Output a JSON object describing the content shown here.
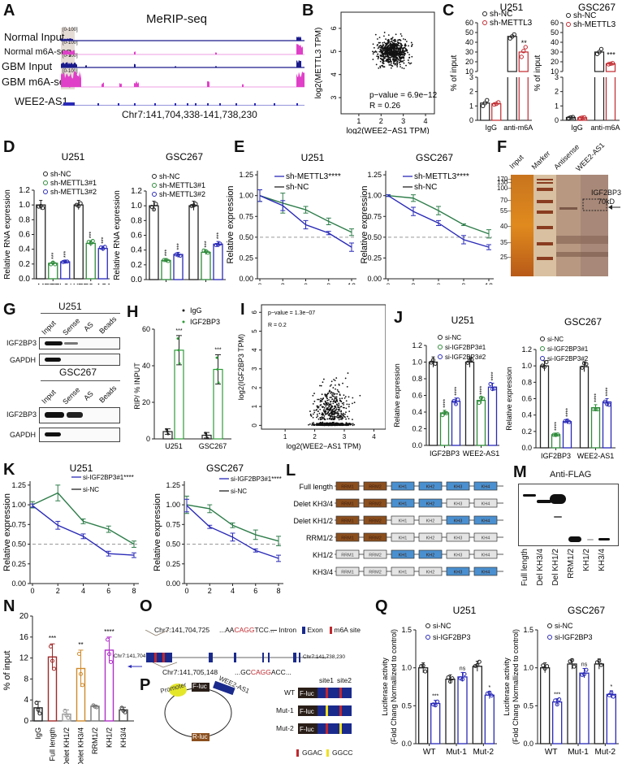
{
  "figure": {
    "panel_labels": [
      "A",
      "B",
      "C",
      "D",
      "E",
      "F",
      "G",
      "H",
      "I",
      "J",
      "K",
      "L",
      "M",
      "N",
      "O",
      "P",
      "Q"
    ]
  },
  "panelA": {
    "title": "MeRIP-seq",
    "tracks": [
      {
        "name": "Normal Input",
        "range": "[0-100]",
        "color": "#1a1a8c"
      },
      {
        "name": "Normal m6A-seq",
        "range": "[0-100]",
        "color": "#e040c8"
      },
      {
        "name": "GBM Input",
        "range": "[0-100]",
        "color": "#1a1a8c"
      },
      {
        "name": "GBM m6A-seq",
        "range": "[0-100]",
        "color": "#e040c8"
      }
    ],
    "gene": "WEE2-AS1",
    "coords": "Chr7:141,704,338-141,738,230"
  },
  "chart_data": [
    {
      "id": "B",
      "type": "scatter",
      "xlabel": "log2(WEE2−AS1 TPM)",
      "ylabel": "log2(METTL3 TPM)",
      "xticks": [
        1,
        2,
        3,
        4
      ],
      "yticks": [
        3,
        4,
        5,
        6
      ],
      "xlim": [
        0.2,
        4.4
      ],
      "ylim": [
        2.3,
        6.7
      ],
      "annotations": [
        "p−value = 6.9e−12",
        "R = 0.26"
      ],
      "description": "~700 points, cloud centered near x=2.5, y=5.0"
    },
    {
      "id": "C-U251",
      "type": "bar",
      "title": "U251",
      "ylabel": "% of input",
      "categories": [
        "IgG",
        "anti-m6A"
      ],
      "series": [
        {
          "name": "sh-NC",
          "color": "#222222",
          "values": [
            1.2,
            46
          ],
          "points": [
            [
              1.0,
              1.2,
              1.4
            ],
            [
              44,
              46,
              48
            ]
          ]
        },
        {
          "name": "sh-METTL3",
          "color": "#c0282e",
          "values": [
            1.15,
            30
          ],
          "points": [
            [
              1.1,
              1.15,
              1.25
            ],
            [
              25,
              31,
              35
            ]
          ]
        }
      ],
      "axis_break": {
        "lower": [
          0,
          3
        ],
        "upper": [
          10,
          60
        ]
      },
      "yticks_lower": [
        0,
        1,
        2,
        3
      ],
      "yticks_upper": [
        10,
        20,
        30,
        40,
        50,
        60
      ],
      "significance": [
        "",
        "**"
      ]
    },
    {
      "id": "C-GSC267",
      "type": "bar",
      "title": "GSC267",
      "ylabel": "% of input",
      "categories": [
        "IgG",
        "anti-m6A"
      ],
      "series": [
        {
          "name": "sh-NC",
          "color": "#222222",
          "values": [
            0.2,
            30
          ],
          "points": [
            [
              0.15,
              0.2,
              0.22
            ],
            [
              28,
              30,
              33
            ]
          ]
        },
        {
          "name": "sh-METTL3",
          "color": "#c0282e",
          "values": [
            0.18,
            18
          ],
          "points": [
            [
              0.15,
              0.18,
              0.2
            ],
            [
              17.5,
              18,
              18.5
            ]
          ]
        }
      ],
      "axis_break": {
        "lower": [
          0,
          3
        ],
        "upper": [
          10,
          60
        ]
      },
      "yticks_lower": [
        0,
        1,
        2,
        3
      ],
      "yticks_upper": [
        10,
        20,
        30,
        40,
        50,
        60
      ],
      "significance": [
        "",
        "***"
      ]
    },
    {
      "id": "D-U251",
      "type": "bar",
      "title": "U251",
      "ylabel": "Relative RNA expression",
      "categories": [
        "METTL3",
        "WEE2-AS1"
      ],
      "series": [
        {
          "name": "sh-NC",
          "color": "#222222",
          "values": [
            1.0,
            1.0
          ]
        },
        {
          "name": "sh-METTL3#1",
          "color": "#2e8b3a",
          "values": [
            0.21,
            0.48
          ]
        },
        {
          "name": "sh-METTL3#2",
          "color": "#2a2ab8",
          "values": [
            0.23,
            0.41
          ]
        }
      ],
      "ylim": [
        0,
        1.2
      ],
      "yticks": [
        0.0,
        0.2,
        0.4,
        0.6,
        0.8,
        1.0,
        1.2
      ],
      "significance": [
        [
          "",
          "***",
          "***"
        ],
        [
          "",
          "***",
          "***"
        ]
      ]
    },
    {
      "id": "D-GSC267",
      "type": "bar",
      "title": "GSC267",
      "ylabel": "Relative RNA expression",
      "categories": [
        "METTL3",
        "WEE2-AS1"
      ],
      "series": [
        {
          "name": "sh-NC",
          "color": "#222222",
          "values": [
            1.0,
            1.0
          ]
        },
        {
          "name": "sh-METTL3#1",
          "color": "#2e8b3a",
          "values": [
            0.26,
            0.37
          ]
        },
        {
          "name": "sh-METTL3#2",
          "color": "#2a2ab8",
          "values": [
            0.34,
            0.48
          ]
        }
      ],
      "ylim": [
        0,
        1.2
      ],
      "yticks": [
        0.0,
        0.2,
        0.4,
        0.6,
        0.8,
        1.0,
        1.2
      ],
      "significance": [
        [
          "",
          "***",
          "***"
        ],
        [
          "",
          "***",
          "***"
        ]
      ]
    },
    {
      "id": "E-U251",
      "type": "line",
      "title": "U251",
      "xlabel": "Time (hours)",
      "ylabel": "Relative expression",
      "x": [
        0,
        3,
        6,
        9,
        12
      ],
      "series": [
        {
          "name": "sh-METTL3****",
          "color": "#2a2ab8",
          "values": [
            1.0,
            0.88,
            0.65,
            0.55,
            0.38
          ],
          "err": [
            0.07,
            0.06,
            0.05,
            0.02,
            0.05
          ]
        },
        {
          "name": "sh-NC",
          "color": "#2e7d4a",
          "values": [
            1.0,
            0.91,
            0.83,
            0.69,
            0.56
          ],
          "err": [
            0.07,
            0.12,
            0.04,
            0.04,
            0.04
          ]
        }
      ],
      "xticks": [
        0,
        3,
        6,
        9,
        12
      ],
      "yticks": [
        0.0,
        0.25,
        0.5,
        0.75,
        1.0,
        1.25
      ],
      "ylim": [
        0,
        1.3
      ],
      "reference_line": 0.5
    },
    {
      "id": "E-GSC267",
      "type": "line",
      "title": "GSC267",
      "xlabel": "Time (hours)",
      "ylabel": "Relative expression",
      "x": [
        0,
        3,
        6,
        9,
        12
      ],
      "series": [
        {
          "name": "sh-METTL3****",
          "color": "#2a2ab8",
          "values": [
            1.0,
            0.81,
            0.67,
            0.47,
            0.38
          ],
          "err": [
            0.01,
            0.05,
            0.03,
            0.05,
            0.03
          ]
        },
        {
          "name": "sh-NC",
          "color": "#2e7d4a",
          "values": [
            1.0,
            0.97,
            0.82,
            0.65,
            0.54
          ],
          "err": [
            0.01,
            0.04,
            0.05,
            0.01,
            0.05
          ]
        }
      ],
      "xticks": [
        0,
        3,
        6,
        9,
        12
      ],
      "yticks": [
        0.0,
        0.25,
        0.5,
        0.75,
        1.0,
        1.25
      ],
      "ylim": [
        0,
        1.3
      ],
      "reference_line": 0.5
    },
    {
      "id": "H",
      "type": "bar",
      "ylabel": "RIP/ % INPUT",
      "categories": [
        "U251",
        "GSC267"
      ],
      "series": [
        {
          "name": "IgG",
          "color": "#222222",
          "values": [
            4,
            2
          ]
        },
        {
          "name": "IGF2BP3",
          "color": "#2e9b3a",
          "values": [
            48.5,
            38
          ]
        }
      ],
      "ylim": [
        0,
        60
      ],
      "yticks": [
        0,
        20,
        40,
        60
      ],
      "significance": [
        [
          "",
          "***"
        ],
        [
          "",
          "***"
        ]
      ]
    },
    {
      "id": "I",
      "type": "scatter",
      "xlabel": "log2(WEE2−AS1 TPM)",
      "ylabel": "log2(IGF2BP3 TPM)",
      "xticks": [
        1,
        2,
        3,
        4
      ],
      "yticks": [
        0,
        1,
        2,
        3,
        4,
        5,
        6
      ],
      "xlim": [
        0.2,
        4.4
      ],
      "ylim": [
        -0.2,
        6.4
      ],
      "annotations": [
        "p−value = 1.3e−07",
        "R = 0.2"
      ],
      "description": "~700 points, dense band near y=0, spread upward between x=2 and x=3.5"
    },
    {
      "id": "J-U251",
      "type": "bar",
      "title": "U251",
      "ylabel": "Relative expression",
      "categories": [
        "IGF2BP3",
        "WEE2-AS1"
      ],
      "series": [
        {
          "name": "si-NC",
          "color": "#222222",
          "values": [
            1.0,
            1.0
          ]
        },
        {
          "name": "si-IGF2BP3#1",
          "color": "#2e8b3a",
          "values": [
            0.39,
            0.54
          ]
        },
        {
          "name": "si-IGF2BP3#2",
          "color": "#2a2ab8",
          "values": [
            0.53,
            0.7
          ]
        }
      ],
      "ylim": [
        0,
        1.2
      ],
      "yticks": [
        0.0,
        0.2,
        0.4,
        0.6,
        0.8,
        1.0,
        1.2
      ],
      "significance": [
        [
          "",
          "****",
          "****"
        ],
        [
          "",
          "****",
          "****"
        ]
      ]
    },
    {
      "id": "J-GSC267",
      "type": "bar",
      "title": "GSC267",
      "ylabel": "Relative expression",
      "categories": [
        "IGF2BP3",
        "WEE2-AS1"
      ],
      "series": [
        {
          "name": "si-NC",
          "color": "#222222",
          "values": [
            1.0,
            0.99
          ]
        },
        {
          "name": "si-IGF2BP3#1",
          "color": "#2e8b3a",
          "values": [
            0.16,
            0.49
          ]
        },
        {
          "name": "si-IGF2BP3#2",
          "color": "#2a2ab8",
          "values": [
            0.32,
            0.56
          ]
        }
      ],
      "ylim": [
        0,
        1.2
      ],
      "yticks": [
        0.0,
        0.2,
        0.4,
        0.6,
        0.8,
        1.0,
        1.2
      ],
      "significance": [
        [
          "",
          "****",
          "****"
        ],
        [
          "",
          "****",
          "****"
        ]
      ]
    },
    {
      "id": "K-U251",
      "type": "line",
      "title": "U251",
      "ylabel": "Relative expression",
      "x": [
        0,
        2,
        4,
        6,
        8
      ],
      "series": [
        {
          "name": "si-IGF2BP3#1****",
          "color": "#2a2ab8",
          "values": [
            0.99,
            0.74,
            0.6,
            0.38,
            0.36
          ],
          "err": [
            0.02,
            0.05,
            0.03,
            0.03,
            0.03
          ]
        },
        {
          "name": "si-NC",
          "color": "#2e7d4a",
          "values": [
            1.0,
            1.15,
            0.79,
            0.69,
            0.5
          ],
          "err": [
            0.04,
            0.1,
            0.03,
            0.04,
            0.04
          ]
        }
      ],
      "xticks": [
        0,
        2,
        4,
        6,
        8
      ],
      "yticks": [
        0.0,
        0.25,
        0.5,
        0.75,
        1.0,
        1.25
      ],
      "ylim": [
        0,
        1.3
      ],
      "reference_line": 0.5
    },
    {
      "id": "K-GSC267",
      "type": "line",
      "title": "GSC267",
      "ylabel": "Relative expression",
      "x": [
        0,
        2,
        4,
        6,
        8
      ],
      "series": [
        {
          "name": "si-IGF2BP3#1****",
          "color": "#2a2ab8",
          "values": [
            0.99,
            0.72,
            0.59,
            0.42,
            0.32
          ],
          "err": [
            0.08,
            0.02,
            0.05,
            0.02,
            0.04
          ]
        },
        {
          "name": "si-NC",
          "color": "#2e7d4a",
          "values": [
            1.0,
            0.95,
            0.74,
            0.62,
            0.54
          ],
          "err": [
            0.11,
            0.05,
            0.03,
            0.06,
            0.06
          ]
        }
      ],
      "xticks": [
        0,
        2,
        4,
        6,
        8
      ],
      "yticks": [
        0.0,
        0.25,
        0.5,
        0.75,
        1.0,
        1.25
      ],
      "ylim": [
        0,
        1.3
      ],
      "reference_line": 0.5
    },
    {
      "id": "N",
      "type": "bar",
      "ylabel": "%  of input",
      "categories": [
        "IgG",
        "Full length",
        "Delet KH1/2",
        "Delet KH3/4",
        "RRM1/2",
        "KH1/2",
        "KH3/4"
      ],
      "colors": [
        "#222222",
        "#a02828",
        "#9a9a9a",
        "#d08a2a",
        "#777777",
        "#b030c8",
        "#444444"
      ],
      "values": [
        2.5,
        12.2,
        1.3,
        10.0,
        2.8,
        13.5,
        2.1
      ],
      "err": [
        1.2,
        2.5,
        0.8,
        3.5,
        0.2,
        2.5,
        0.5
      ],
      "ylim": [
        0,
        20
      ],
      "yticks": [
        0,
        4,
        8,
        12,
        16,
        20
      ],
      "significance": [
        "",
        "***",
        "",
        "**",
        "",
        "****",
        ""
      ]
    },
    {
      "id": "Q-U251",
      "type": "bar",
      "title": "U251",
      "ylabel": "Luciferase activity (Fold Chang Normallized to control)",
      "categories": [
        "WT",
        "Mut-1",
        "Mut-2"
      ],
      "series": [
        {
          "name": "si-NC",
          "color": "#222222",
          "values": [
            1.0,
            0.85,
            1.02
          ]
        },
        {
          "name": "si-IGF2BP3",
          "color": "#2a2ab8",
          "values": [
            0.53,
            0.88,
            0.64
          ]
        }
      ],
      "ylim": [
        0,
        1.5
      ],
      "yticks": [
        0.0,
        0.5,
        1.0,
        1.5
      ],
      "significance": [
        [
          "",
          "***"
        ],
        [
          "",
          "ns"
        ],
        [
          "",
          "*"
        ]
      ]
    },
    {
      "id": "Q-GSC267",
      "type": "bar",
      "title": "GSC267",
      "ylabel": "Luciferase activity (Fold Chang Normallized to control)",
      "categories": [
        "WT",
        "Mut-1",
        "Mut-2"
      ],
      "series": [
        {
          "name": "si-NC",
          "color": "#222222",
          "values": [
            1.0,
            1.05,
            1.05
          ]
        },
        {
          "name": "si-IGF2BP3",
          "color": "#2a2ab8",
          "values": [
            0.55,
            0.93,
            0.65
          ]
        }
      ],
      "ylim": [
        0,
        1.5
      ],
      "yticks": [
        0.0,
        0.5,
        1.0,
        1.5
      ],
      "significance": [
        [
          "",
          "***"
        ],
        [
          "",
          "ns"
        ],
        [
          "",
          "*"
        ]
      ]
    }
  ],
  "panelF": {
    "lanes": [
      "Input",
      "Marker",
      "Antisense",
      "WEE2-AS1"
    ],
    "markers": [
      "170",
      "130",
      "100",
      "70",
      "55",
      "40",
      "35",
      "25"
    ],
    "annotation": "IGF2BP3",
    "annotation2": "70kD"
  },
  "panelG": {
    "blocks": [
      {
        "cell": "U251",
        "lanes": [
          "Input",
          "Sense",
          "AS",
          "Beads"
        ],
        "rows": [
          "IGF2BP3",
          "GAPDH"
        ]
      },
      {
        "cell": "GSC267",
        "lanes": [
          "Input",
          "Sense",
          "AS",
          "Beads"
        ],
        "rows": [
          "IGF2BP3",
          "GAPDH"
        ]
      }
    ]
  },
  "panelL": {
    "constructs": [
      {
        "name": "Full length",
        "domains": [
          1,
          1,
          1,
          1,
          1,
          1
        ]
      },
      {
        "name": "Delet KH3/4",
        "domains": [
          1,
          1,
          1,
          1,
          0,
          0
        ]
      },
      {
        "name": "Delet KH1/2",
        "domains": [
          1,
          1,
          0,
          0,
          1,
          1
        ]
      },
      {
        "name": "RRM1/2",
        "domains": [
          1,
          1,
          0,
          0,
          0,
          0
        ]
      },
      {
        "name": "KH1/2",
        "domains": [
          0,
          0,
          1,
          1,
          0,
          0
        ]
      },
      {
        "name": "KH3/4",
        "domains": [
          0,
          0,
          0,
          0,
          1,
          1
        ]
      }
    ],
    "domain_names": [
      "RRM1",
      "RRM2",
      "KH1",
      "KH2",
      "KH3",
      "KH4"
    ],
    "rrm_color": "#8b4f1e",
    "kh_color": "#4a90d0",
    "off_color": "#e4e4e4"
  },
  "panelM": {
    "title": "Anti-FLAG",
    "lanes": [
      "Full length",
      "Del KH3/4",
      "Del KH1/2",
      "RRM1/2",
      "KH1/2",
      "KH3/4"
    ]
  },
  "panelO": {
    "site1_coord": "Chr7:141,704,725",
    "site1_seq_pre": "...AA",
    "site1_seq_motif": "CAGG",
    "site1_seq_post": "TCC...",
    "site2_coord": "Chr7:141,705,148",
    "site2_seq_pre": "...GC",
    "site2_seq_motif": "CAGG",
    "site2_seq_post": "ACC...",
    "left_coord": "Chr7:141,704,338",
    "right_coord": "Chr7:141,738,230",
    "legend": [
      "Intron",
      "Exon",
      "m6A site"
    ]
  },
  "panelP": {
    "plasmid_labels": [
      "Promoter",
      "F-luc",
      "WEE2-AS1",
      "R-luc"
    ],
    "constructs": [
      "WT",
      "Mut-1",
      "Mut-2"
    ],
    "site_labels": [
      "site1",
      "site2"
    ],
    "legend": [
      "GGAC",
      "GGCC"
    ]
  }
}
